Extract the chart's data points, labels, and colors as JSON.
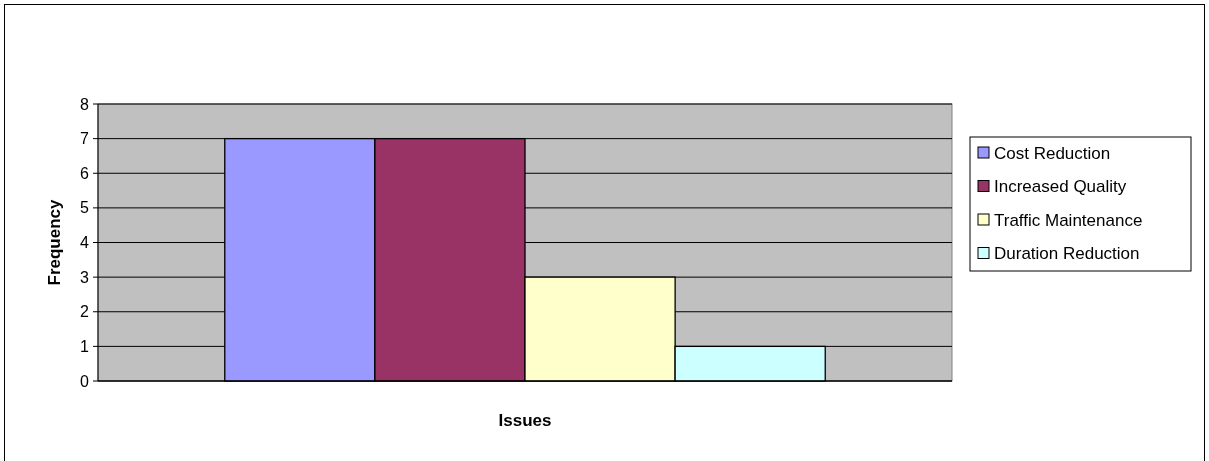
{
  "chart_data": {
    "type": "bar",
    "xlabel": "Issues",
    "ylabel": "Frequency",
    "categories": [
      null
    ],
    "series": [
      {
        "name": "Cost Reduction",
        "color": "#9999ff",
        "values": [
          7
        ]
      },
      {
        "name": "Increased Quality",
        "color": "#993366",
        "values": [
          7
        ]
      },
      {
        "name": "Traffic Maintenance",
        "color": "#ffffcc",
        "values": [
          3
        ]
      },
      {
        "name": "Duration Reduction",
        "color": "#ccffff",
        "values": [
          1
        ]
      }
    ],
    "ylim": [
      0,
      8
    ],
    "yticks": [
      0,
      1,
      2,
      3,
      4,
      5,
      6,
      7,
      8
    ],
    "grid": "y",
    "legend": "right"
  }
}
